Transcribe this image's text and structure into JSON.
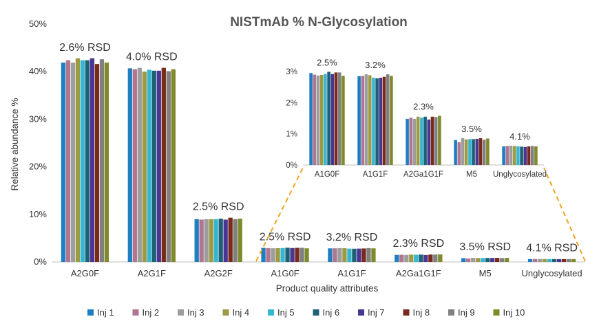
{
  "chart_data": [
    {
      "type": "bar",
      "title": "NISTmAb % N-Glycosylation",
      "xlabel": "Product quality attributes",
      "ylabel": "Relative abundance %",
      "ylim": [
        0,
        50
      ],
      "yticks": [
        "0%",
        "10%",
        "20%",
        "30%",
        "40%",
        "50%"
      ],
      "legend_position": "bottom",
      "categories": [
        "A2G0F",
        "A2G1F",
        "A2G2F",
        "A1G0F",
        "A1G1F",
        "A2Ga1G1F",
        "M5",
        "Unglycosylated"
      ],
      "rsd_labels": [
        "2.6% RSD",
        "4.0% RSD",
        "2.5% RSD",
        "2.5% RSD",
        "3.2% RSD",
        "2.3% RSD",
        "3.5% RSD",
        "4.1% RSD"
      ],
      "series": [
        {
          "name": "Inj 1",
          "color": "#1f7dc1",
          "values": [
            41.9,
            40.7,
            9.0,
            2.95,
            2.85,
            1.48,
            0.8,
            0.6
          ]
        },
        {
          "name": "Inj 2",
          "color": "#b0758f",
          "values": [
            42.4,
            40.5,
            8.9,
            2.9,
            2.86,
            1.52,
            0.73,
            0.61
          ]
        },
        {
          "name": "Inj 3",
          "color": "#9d9d9d",
          "values": [
            41.9,
            40.8,
            9.0,
            2.87,
            2.91,
            1.48,
            0.86,
            0.62
          ]
        },
        {
          "name": "Inj 4",
          "color": "#9d9a44",
          "values": [
            42.8,
            40.0,
            9.0,
            2.89,
            2.88,
            1.55,
            0.82,
            0.61
          ]
        },
        {
          "name": "Inj 5",
          "color": "#37b7cf",
          "values": [
            42.4,
            40.4,
            9.0,
            2.92,
            2.8,
            1.52,
            0.83,
            0.6
          ]
        },
        {
          "name": "Inj 6",
          "color": "#1d6177",
          "values": [
            42.4,
            40.2,
            9.1,
            2.99,
            2.78,
            1.55,
            0.83,
            0.59
          ]
        },
        {
          "name": "Inj 7",
          "color": "#4a3592",
          "values": [
            42.8,
            40.2,
            8.9,
            2.92,
            2.8,
            1.46,
            0.84,
            0.58
          ]
        },
        {
          "name": "Inj 8",
          "color": "#7a2a1c",
          "values": [
            41.6,
            40.8,
            9.3,
            2.97,
            2.83,
            1.55,
            0.86,
            0.6
          ]
        },
        {
          "name": "Inj 9",
          "color": "#808080",
          "values": [
            42.6,
            40.1,
            9.0,
            2.97,
            2.91,
            1.54,
            0.81,
            0.61
          ]
        },
        {
          "name": "Inj 10",
          "color": "#7f8a2c",
          "values": [
            41.9,
            40.5,
            9.1,
            2.86,
            2.86,
            1.58,
            0.85,
            0.6
          ]
        }
      ]
    },
    {
      "type": "bar",
      "title": "",
      "ylim": [
        0,
        3
      ],
      "yticks": [
        "0%",
        "1%",
        "2%",
        "3%"
      ],
      "categories": [
        "A1G0F",
        "A1G1F",
        "A2Ga1G1F",
        "M5",
        "Unglycosylated"
      ],
      "rsd_labels": [
        "2.5%",
        "3.2%",
        "2.3%",
        "3.5%",
        "4.1%"
      ]
    }
  ]
}
